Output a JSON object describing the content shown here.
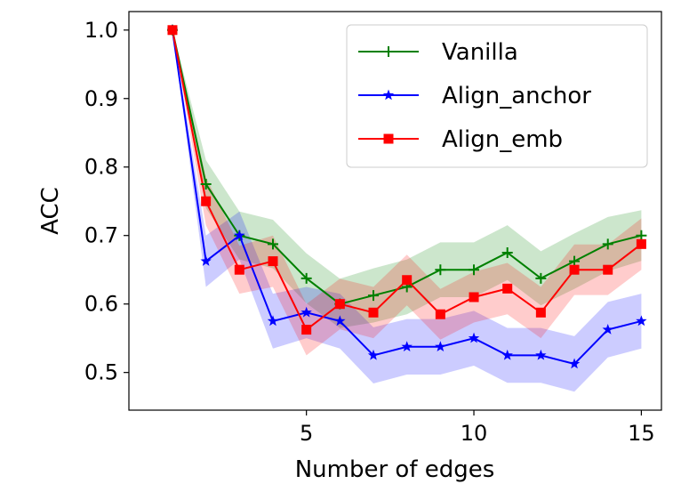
{
  "chart_data": {
    "type": "line",
    "title": "",
    "xlabel": "Number of edges",
    "ylabel": "ACC",
    "xlim": [
      -0.3,
      15.6
    ],
    "ylim": [
      0.445,
      1.027
    ],
    "xticks": [
      5,
      10,
      15
    ],
    "yticks": [
      0.5,
      0.6,
      0.7,
      0.8,
      0.9,
      1.0
    ],
    "ytick_labels": [
      "0.5",
      "0.6",
      "0.7",
      "0.8",
      "0.9",
      "1.0"
    ],
    "xtick_labels": [
      "5",
      "10",
      "15"
    ],
    "legend_position": "top-right",
    "x": [
      1,
      2,
      3,
      4,
      5,
      6,
      7,
      8,
      9,
      10,
      11,
      12,
      13,
      14,
      15
    ],
    "series": [
      {
        "name": "Vanilla",
        "color": "#008000",
        "marker": "plus",
        "values": [
          1.0,
          0.775,
          0.7,
          0.6875,
          0.6375,
          0.6,
          0.6125,
          0.625,
          0.65,
          0.65,
          0.675,
          0.6375,
          0.6625,
          0.6875,
          0.7
        ],
        "lower": [
          1.0,
          0.74,
          0.665,
          0.652,
          0.601,
          0.565,
          0.573,
          0.585,
          0.61,
          0.61,
          0.635,
          0.598,
          0.622,
          0.648,
          0.663
        ],
        "upper": [
          1.0,
          0.81,
          0.735,
          0.723,
          0.674,
          0.637,
          0.652,
          0.665,
          0.69,
          0.69,
          0.715,
          0.677,
          0.703,
          0.727,
          0.737
        ]
      },
      {
        "name": "Align_anchor",
        "color": "#0000ff",
        "marker": "star",
        "values": [
          1.0,
          0.6625,
          0.7,
          0.575,
          0.5875,
          0.575,
          0.525,
          0.5375,
          0.5375,
          0.55,
          0.525,
          0.525,
          0.5125,
          0.5625,
          0.575
        ],
        "lower": [
          1.0,
          0.625,
          0.665,
          0.535,
          0.55,
          0.535,
          0.484,
          0.497,
          0.497,
          0.51,
          0.485,
          0.485,
          0.472,
          0.522,
          0.535
        ],
        "upper": [
          1.0,
          0.7,
          0.735,
          0.615,
          0.625,
          0.615,
          0.566,
          0.578,
          0.578,
          0.59,
          0.565,
          0.565,
          0.553,
          0.603,
          0.615
        ]
      },
      {
        "name": "Align_emb",
        "color": "#ff0000",
        "marker": "square",
        "values": [
          1.0,
          0.75,
          0.65,
          0.6625,
          0.5625,
          0.6,
          0.5875,
          0.635,
          0.585,
          0.61,
          0.6225,
          0.5875,
          0.65,
          0.65,
          0.6875
        ],
        "lower": [
          1.0,
          0.715,
          0.615,
          0.625,
          0.525,
          0.563,
          0.55,
          0.598,
          0.548,
          0.573,
          0.585,
          0.55,
          0.613,
          0.613,
          0.65
        ],
        "upper": [
          1.0,
          0.785,
          0.685,
          0.7,
          0.6,
          0.637,
          0.625,
          0.672,
          0.622,
          0.647,
          0.66,
          0.625,
          0.687,
          0.687,
          0.725
        ]
      }
    ]
  }
}
